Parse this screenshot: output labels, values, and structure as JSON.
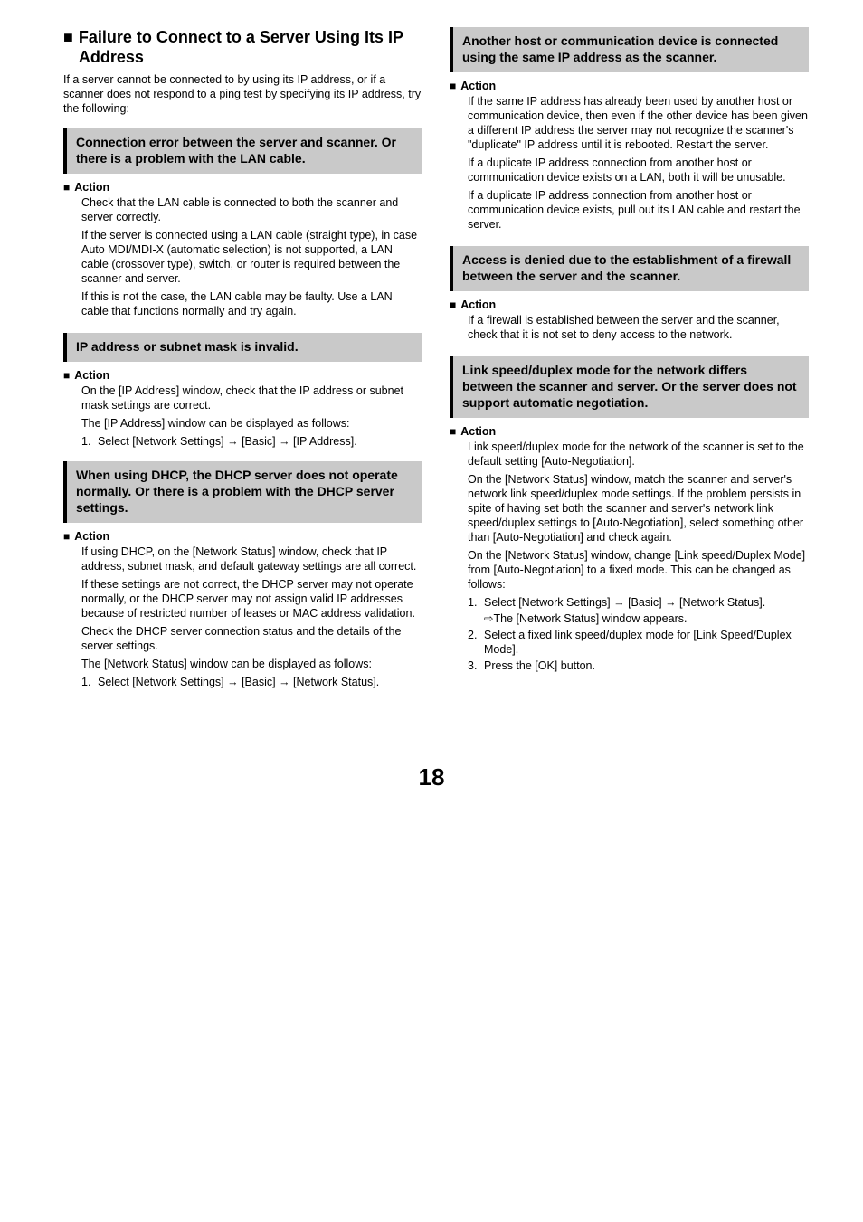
{
  "left": {
    "mainHeading": "Failure to Connect to a Server Using Its IP Address",
    "intro": "If a server cannot be connected to by using its IP address, or if a scanner does not respond to a ping test by specifying its IP address, try the following:",
    "s1": {
      "title": "Connection error between the server and scanner. Or there is a problem with the LAN cable.",
      "actionLabel": "Action",
      "p1": "Check that the LAN cable is connected to both the scanner and server correctly.",
      "p2": "If the server is connected using a LAN cable (straight type), in case Auto MDI/MDI-X (automatic selection) is not supported, a LAN cable (crossover type), switch, or router is required between the scanner and server.",
      "p3": "If this is not the case, the LAN cable may be faulty. Use a LAN cable that functions normally and try again."
    },
    "s2": {
      "title": "IP address or subnet mask is invalid.",
      "actionLabel": "Action",
      "p1": "On the [IP Address] window, check that the IP address or subnet mask settings are correct.",
      "p2": "The [IP Address] window can be displayed as follows:",
      "l1": "Select [Network Settings] → [Basic] → [IP Address]."
    },
    "s3": {
      "title": "When using DHCP, the DHCP server does not operate normally. Or there is a problem with the DHCP server settings.",
      "actionLabel": "Action",
      "p1": "If using DHCP, on the [Network Status] window, check that IP address, subnet mask, and default gateway settings are all correct.",
      "p2": "If these settings are not correct, the DHCP server may not operate normally, or the DHCP server may not assign valid IP addresses because of restricted number of leases or MAC address validation.",
      "p3": "Check the DHCP server connection status and the details of the server settings.",
      "p4": "The [Network Status] window can be displayed as follows:",
      "l1": "Select [Network Settings] → [Basic] → [Network Status]."
    }
  },
  "right": {
    "s4": {
      "title": "Another host or communication device is connected using the same IP address as the scanner.",
      "actionLabel": "Action",
      "p1": "If the same IP address has already been used by another host or communication device, then even if the other device has been given a different IP address the server may not recognize the scanner's \"duplicate\" IP address until it is rebooted. Restart the server.",
      "p2": "If a duplicate IP address connection from another host or communication device exists on a LAN, both it will be unusable.",
      "p3": "If a duplicate IP address connection from another host or communication device exists, pull out its LAN cable and restart the server."
    },
    "s5": {
      "title": "Access is denied due to the establishment of a firewall between the server and the scanner.",
      "actionLabel": "Action",
      "p1": "If a firewall is established between the server and the scanner, check that it is not set to deny access to the network."
    },
    "s6": {
      "title": "Link speed/duplex mode for the network differs between the scanner and server. Or the server does not support automatic negotiation.",
      "actionLabel": "Action",
      "p1": "Link speed/duplex mode for the network of the scanner is set to the default setting [Auto-Negotiation].",
      "p2": "On the [Network Status] window, match the scanner and server's network link speed/duplex mode settings. If the problem persists in spite of having set both the scanner and server's network link speed/duplex settings to [Auto-Negotiation], select something other than [Auto-Negotiation] and check again.",
      "p3": "On the [Network Status] window, change [Link speed/Duplex Mode] from [Auto-Negotiation] to a fixed mode. This can be changed as follows:",
      "l1": "Select [Network Settings] → [Basic] → [Network Status].",
      "l1sub": "The [Network Status] window appears.",
      "l2": "Select a fixed link speed/duplex mode for [Link Speed/Duplex Mode].",
      "l3": "Press the [OK] button."
    }
  },
  "pageNumber": "18",
  "num1": "1.",
  "num2": "2.",
  "num3": "3.",
  "arrowGlyph": "⇨"
}
